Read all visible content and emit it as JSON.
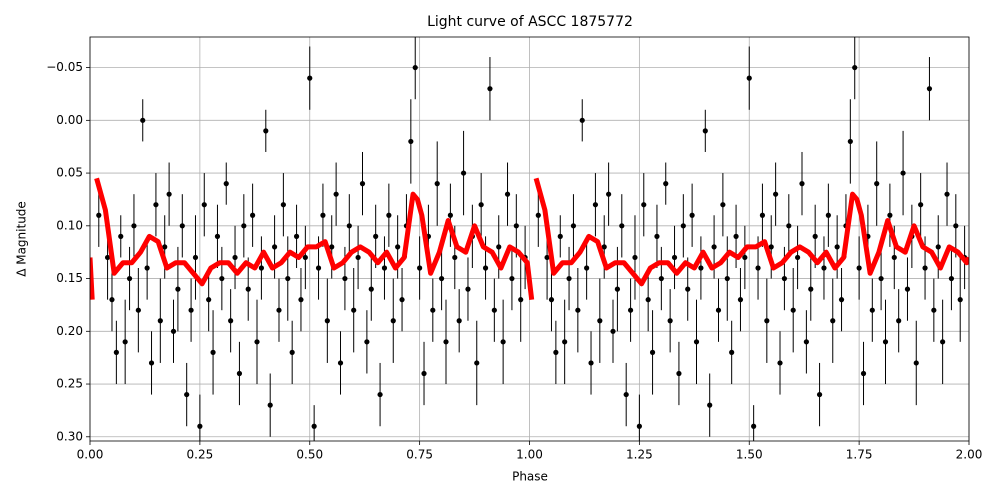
{
  "chart_data": {
    "type": "scatter",
    "title": "Light curve of ASCC 1875772",
    "x_label": "Phase",
    "y_label": "Δ Magnitude",
    "xlim": [
      0,
      2
    ],
    "ylim": [
      -0.079,
      0.304
    ],
    "invert_y": true,
    "grid": true,
    "xticks": [
      {
        "value": 0,
        "label": "0.00"
      },
      {
        "value": 0.25,
        "label": "0.25"
      },
      {
        "value": 0.5,
        "label": "0.50"
      },
      {
        "value": 0.75,
        "label": "0.75"
      },
      {
        "value": 1,
        "label": "1.00"
      },
      {
        "value": 1.25,
        "label": "1.25"
      },
      {
        "value": 1.5,
        "label": "1.50"
      },
      {
        "value": 1.75,
        "label": "1.75"
      },
      {
        "value": 2,
        "label": "2.00"
      }
    ],
    "yticks": [
      {
        "value": -0.05,
        "label": "−0.05"
      },
      {
        "value": 0,
        "label": "0.00"
      },
      {
        "value": 0.05,
        "label": "0.05"
      },
      {
        "value": 0.1,
        "label": "0.10"
      },
      {
        "value": 0.15,
        "label": "0.15"
      },
      {
        "value": 0.2,
        "label": "0.20"
      },
      {
        "value": 0.25,
        "label": "0.25"
      },
      {
        "value": 0.3,
        "label": "0.30"
      }
    ],
    "series": [
      {
        "type": "errorbar",
        "color": "#000000",
        "x": [
          0.02,
          0.04,
          0.05,
          0.06,
          0.07,
          0.08,
          0.09,
          0.1,
          0.11,
          0.12,
          0.13,
          0.14,
          0.15,
          0.16,
          0.17,
          0.18,
          0.19,
          0.2,
          0.21,
          0.22,
          0.23,
          0.24,
          0.25,
          0.26,
          0.27,
          0.28,
          0.29,
          0.3,
          0.31,
          0.32,
          0.33,
          0.34,
          0.35,
          0.36,
          0.37,
          0.38,
          0.39,
          0.4,
          0.41,
          0.42,
          0.43,
          0.44,
          0.45,
          0.46,
          0.47,
          0.48,
          0.49,
          0.5,
          0.51,
          0.52,
          0.53,
          0.54,
          0.55,
          0.56,
          0.57,
          0.58,
          0.59,
          0.6,
          0.61,
          0.62,
          0.63,
          0.64,
          0.65,
          0.66,
          0.67,
          0.68,
          0.69,
          0.7,
          0.71,
          0.72,
          0.73,
          0.74,
          0.75,
          0.76,
          0.77,
          0.78,
          0.79,
          0.8,
          0.81,
          0.82,
          0.83,
          0.84,
          0.85,
          0.86,
          0.87,
          0.88,
          0.89,
          0.9,
          0.91,
          0.92,
          0.93,
          0.94,
          0.95,
          0.96,
          0.97,
          0.98,
          0.99,
          1.02,
          1.04,
          1.05,
          1.06,
          1.07,
          1.08,
          1.09,
          1.1,
          1.11,
          1.12,
          1.13,
          1.14,
          1.15,
          1.16,
          1.17,
          1.18,
          1.19,
          1.2,
          1.21,
          1.22,
          1.23,
          1.24,
          1.25,
          1.26,
          1.27,
          1.28,
          1.29,
          1.3,
          1.31,
          1.32,
          1.33,
          1.34,
          1.35,
          1.36,
          1.37,
          1.38,
          1.39,
          1.4,
          1.41,
          1.42,
          1.43,
          1.44,
          1.45,
          1.46,
          1.47,
          1.48,
          1.49,
          1.5,
          1.51,
          1.52,
          1.53,
          1.54,
          1.55,
          1.56,
          1.57,
          1.58,
          1.59,
          1.6,
          1.61,
          1.62,
          1.63,
          1.64,
          1.65,
          1.66,
          1.67,
          1.68,
          1.69,
          1.7,
          1.71,
          1.72,
          1.73,
          1.74,
          1.75,
          1.76,
          1.77,
          1.78,
          1.79,
          1.8,
          1.81,
          1.82,
          1.83,
          1.84,
          1.85,
          1.86,
          1.87,
          1.88,
          1.89,
          1.9,
          1.91,
          1.92,
          1.93,
          1.94,
          1.95,
          1.96,
          1.97,
          1.98,
          1.99
        ],
        "values": [
          0.09,
          0.13,
          0.17,
          0.22,
          0.11,
          0.21,
          0.15,
          0.1,
          0.18,
          0.0,
          0.14,
          0.23,
          0.08,
          0.19,
          0.12,
          0.07,
          0.2,
          0.16,
          0.1,
          0.26,
          0.18,
          0.13,
          0.29,
          0.08,
          0.17,
          0.22,
          0.11,
          0.15,
          0.06,
          0.19,
          0.13,
          0.24,
          0.1,
          0.16,
          0.09,
          0.21,
          0.14,
          0.01,
          0.27,
          0.12,
          0.18,
          0.08,
          0.15,
          0.22,
          0.11,
          0.17,
          0.13,
          -0.04,
          0.29,
          0.14,
          0.09,
          0.19,
          0.12,
          0.07,
          0.23,
          0.15,
          0.1,
          0.18,
          0.13,
          0.06,
          0.21,
          0.16,
          0.11,
          0.26,
          0.14,
          0.09,
          0.19,
          0.12,
          0.17,
          0.1,
          0.02,
          -0.05,
          0.14,
          0.24,
          0.11,
          0.18,
          0.06,
          0.15,
          0.21,
          0.09,
          0.13,
          0.19,
          0.05,
          0.16,
          0.11,
          0.23,
          0.08,
          0.14,
          -0.03,
          0.18,
          0.12,
          0.21,
          0.07,
          0.15,
          0.1,
          0.17,
          0.13,
          0.09,
          0.13,
          0.17,
          0.22,
          0.11,
          0.21,
          0.15,
          0.1,
          0.18,
          0.0,
          0.14,
          0.23,
          0.08,
          0.19,
          0.12,
          0.07,
          0.2,
          0.16,
          0.1,
          0.26,
          0.18,
          0.13,
          0.29,
          0.08,
          0.17,
          0.22,
          0.11,
          0.15,
          0.06,
          0.19,
          0.13,
          0.24,
          0.1,
          0.16,
          0.09,
          0.21,
          0.14,
          0.01,
          0.27,
          0.12,
          0.18,
          0.08,
          0.15,
          0.22,
          0.11,
          0.17,
          0.13,
          -0.04,
          0.29,
          0.14,
          0.09,
          0.19,
          0.12,
          0.07,
          0.23,
          0.15,
          0.1,
          0.18,
          0.13,
          0.06,
          0.21,
          0.16,
          0.11,
          0.26,
          0.14,
          0.09,
          0.19,
          0.12,
          0.17,
          0.1,
          0.02,
          -0.05,
          0.14,
          0.24,
          0.11,
          0.18,
          0.06,
          0.15,
          0.21,
          0.09,
          0.13,
          0.19,
          0.05,
          0.16,
          0.11,
          0.23,
          0.08,
          0.14,
          -0.03,
          0.18,
          0.12,
          0.21,
          0.07,
          0.15,
          0.1,
          0.17,
          0.13
        ],
        "errors": [
          0.03,
          0.04,
          0.03,
          0.03,
          0.02,
          0.04,
          0.03,
          0.03,
          0.04,
          0.02,
          0.03,
          0.03,
          0.03,
          0.04,
          0.03,
          0.03,
          0.03,
          0.04,
          0.03,
          0.03,
          0.03,
          0.04,
          0.03,
          0.03,
          0.03,
          0.04,
          0.03,
          0.03,
          0.02,
          0.03,
          0.03,
          0.03,
          0.03,
          0.03,
          0.03,
          0.04,
          0.03,
          0.02,
          0.03,
          0.03,
          0.03,
          0.03,
          0.04,
          0.03,
          0.03,
          0.03,
          0.03,
          0.03,
          0.02,
          0.03,
          0.03,
          0.04,
          0.03,
          0.03,
          0.03,
          0.03,
          0.03,
          0.04,
          0.03,
          0.03,
          0.03,
          0.03,
          0.03,
          0.03,
          0.03,
          0.03,
          0.04,
          0.03,
          0.03,
          0.03,
          0.04,
          0.03,
          0.03,
          0.03,
          0.03,
          0.03,
          0.04,
          0.03,
          0.04,
          0.03,
          0.03,
          0.03,
          0.04,
          0.03,
          0.03,
          0.04,
          0.03,
          0.03,
          0.03,
          0.03,
          0.03,
          0.04,
          0.03,
          0.03,
          0.03,
          0.04,
          0.03,
          0.03,
          0.04,
          0.03,
          0.03,
          0.02,
          0.04,
          0.03,
          0.03,
          0.04,
          0.02,
          0.03,
          0.03,
          0.03,
          0.04,
          0.03,
          0.03,
          0.03,
          0.04,
          0.03,
          0.03,
          0.03,
          0.04,
          0.03,
          0.03,
          0.03,
          0.04,
          0.03,
          0.03,
          0.02,
          0.03,
          0.03,
          0.03,
          0.03,
          0.03,
          0.03,
          0.04,
          0.03,
          0.02,
          0.03,
          0.03,
          0.03,
          0.03,
          0.04,
          0.03,
          0.03,
          0.03,
          0.03,
          0.03,
          0.02,
          0.03,
          0.03,
          0.04,
          0.03,
          0.03,
          0.03,
          0.03,
          0.03,
          0.04,
          0.03,
          0.03,
          0.03,
          0.03,
          0.03,
          0.03,
          0.03,
          0.03,
          0.04,
          0.03,
          0.03,
          0.03,
          0.04,
          0.03,
          0.03,
          0.03,
          0.03,
          0.03,
          0.04,
          0.03,
          0.04,
          0.03,
          0.03,
          0.03,
          0.04,
          0.03,
          0.03,
          0.04,
          0.03,
          0.03,
          0.03,
          0.03,
          0.03,
          0.04,
          0.03,
          0.03,
          0.03,
          0.04,
          0.03
        ]
      },
      {
        "type": "line",
        "color": "#ff0000",
        "x": [
          0,
          0.005,
          0.01,
          0.015,
          0.035,
          0.055,
          0.075,
          0.095,
          0.115,
          0.135,
          0.155,
          0.175,
          0.195,
          0.215,
          0.235,
          0.255,
          0.275,
          0.295,
          0.315,
          0.335,
          0.355,
          0.375,
          0.395,
          0.415,
          0.435,
          0.455,
          0.475,
          0.495,
          0.515,
          0.535,
          0.555,
          0.575,
          0.595,
          0.615,
          0.635,
          0.655,
          0.675,
          0.695,
          0.715,
          0.735,
          0.745,
          0.755,
          0.775,
          0.795,
          0.815,
          0.835,
          0.855,
          0.875,
          0.895,
          0.915,
          0.935,
          0.955,
          0.975,
          0.995,
          1.005,
          1.01,
          1.015,
          1.035,
          1.055,
          1.075,
          1.095,
          1.115,
          1.135,
          1.155,
          1.175,
          1.195,
          1.215,
          1.235,
          1.255,
          1.275,
          1.295,
          1.315,
          1.335,
          1.355,
          1.375,
          1.395,
          1.415,
          1.435,
          1.455,
          1.475,
          1.495,
          1.515,
          1.535,
          1.555,
          1.575,
          1.595,
          1.615,
          1.635,
          1.655,
          1.675,
          1.695,
          1.715,
          1.735,
          1.745,
          1.755,
          1.775,
          1.795,
          1.815,
          1.835,
          1.855,
          1.875,
          1.895,
          1.915,
          1.935,
          1.955,
          1.975,
          1.995,
          2.0
        ],
        "values": [
          0.13,
          0.17,
          null,
          0.055,
          0.085,
          0.145,
          0.135,
          0.135,
          0.125,
          0.11,
          0.115,
          0.14,
          0.135,
          0.135,
          0.145,
          0.155,
          0.14,
          0.135,
          0.135,
          0.145,
          0.135,
          0.14,
          0.125,
          0.14,
          0.135,
          0.125,
          0.13,
          0.12,
          0.12,
          0.115,
          0.14,
          0.135,
          0.125,
          0.12,
          0.125,
          0.135,
          0.125,
          0.14,
          0.13,
          0.07,
          0.075,
          0.09,
          0.145,
          0.125,
          0.095,
          0.12,
          0.125,
          0.1,
          0.12,
          0.125,
          0.14,
          0.12,
          0.125,
          0.135,
          0.17,
          null,
          0.055,
          0.085,
          0.145,
          0.135,
          0.135,
          0.125,
          0.11,
          0.115,
          0.14,
          0.135,
          0.135,
          0.145,
          0.155,
          0.14,
          0.135,
          0.135,
          0.145,
          0.135,
          0.14,
          0.125,
          0.14,
          0.135,
          0.125,
          0.13,
          0.12,
          0.12,
          0.115,
          0.14,
          0.135,
          0.125,
          0.12,
          0.125,
          0.135,
          0.125,
          0.14,
          0.13,
          0.07,
          0.075,
          0.09,
          0.145,
          0.125,
          0.095,
          0.12,
          0.125,
          0.1,
          0.12,
          0.125,
          0.14,
          0.12,
          0.125,
          0.135,
          0.13
        ]
      }
    ]
  }
}
